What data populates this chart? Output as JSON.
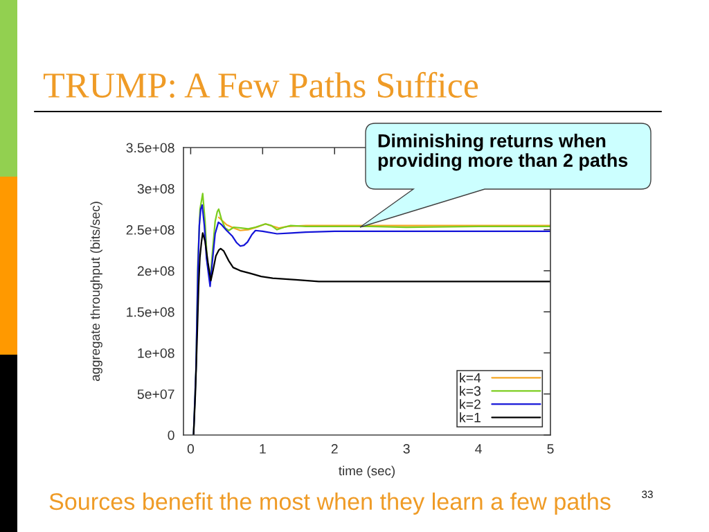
{
  "chart_data": {
    "type": "line",
    "title": "TRUMP: A Few Paths Suffice",
    "xlabel": "time (sec)",
    "ylabel": "aggregate throughput (bits/sec)",
    "xlim": [
      -0.1,
      5
    ],
    "xticks": [
      0,
      1,
      2,
      3,
      4,
      5
    ],
    "ylim": [
      0,
      350000000
    ],
    "yticks": [
      0,
      {
        "value": 50000000,
        "label": "5e+07"
      },
      {
        "value": 100000000,
        "label": "1e+08"
      },
      {
        "value": 150000000,
        "label": "1.5e+08"
      },
      {
        "value": 200000000,
        "label": "2e+08"
      },
      {
        "value": 250000000,
        "label": "2.5e+08"
      },
      {
        "value": 300000000,
        "label": "3e+08"
      },
      {
        "value": 350000000,
        "label": "3.5e+08"
      }
    ],
    "legend": "bottom right",
    "series": [
      {
        "name": "k=4",
        "color": "#f5a623",
        "x": [
          0.39,
          0.5,
          0.6,
          0.69,
          0.8,
          0.95,
          1.04,
          1.15,
          1.23,
          1.35,
          1.6,
          2.0,
          3.0,
          4.0,
          5.0
        ],
        "values": [
          265000000,
          256000000,
          252000000,
          249000000,
          250000000,
          254000000,
          257000000,
          254000000,
          252000000,
          254000000,
          255000000,
          255000000,
          255000000,
          255000000,
          255000000
        ]
      },
      {
        "name": "k=3",
        "color": "#7ccd1f",
        "x": [
          0.04,
          0.074,
          0.1,
          0.13,
          0.167,
          0.2,
          0.23,
          0.27,
          0.3,
          0.34,
          0.37,
          0.39,
          0.43,
          0.48,
          0.53,
          0.6,
          0.7,
          0.8,
          0.9,
          1.04,
          1.12,
          1.2,
          1.3,
          1.39,
          1.6,
          2.0,
          2.5,
          3.0,
          4.0,
          5.0
        ],
        "values": [
          0,
          80000000,
          210000000,
          275000000,
          294000000,
          260000000,
          210000000,
          188000000,
          220000000,
          260000000,
          272000000,
          275000000,
          262000000,
          252000000,
          249000000,
          253000000,
          252000000,
          251000000,
          253000000,
          257000000,
          255000000,
          250000000,
          253000000,
          255000000,
          254000000,
          254000000,
          254000000,
          253000000,
          254000000,
          254000000
        ]
      },
      {
        "name": "k=2",
        "color": "#1414d8",
        "x": [
          0.04,
          0.074,
          0.1,
          0.12,
          0.14,
          0.16,
          0.19,
          0.22,
          0.27,
          0.3,
          0.34,
          0.385,
          0.43,
          0.5,
          0.58,
          0.64,
          0.69,
          0.74,
          0.79,
          0.85,
          0.9,
          1.0,
          1.2,
          1.4,
          1.6,
          2.0,
          3.0,
          4.0,
          5.0
        ],
        "values": [
          0,
          80000000,
          200000000,
          255000000,
          275000000,
          280000000,
          255000000,
          215000000,
          181000000,
          210000000,
          245000000,
          259000000,
          256000000,
          249000000,
          242000000,
          234000000,
          230000000,
          231000000,
          235000000,
          244000000,
          249000000,
          248000000,
          245000000,
          246000000,
          247000000,
          248000000,
          248000000,
          248000000,
          248000000
        ]
      },
      {
        "name": "k=1",
        "color": "#000000",
        "x": [
          0.04,
          0.065,
          0.09,
          0.11,
          0.128,
          0.15,
          0.167,
          0.2,
          0.24,
          0.28,
          0.31,
          0.35,
          0.39,
          0.417,
          0.46,
          0.53,
          0.59,
          0.69,
          0.82,
          0.98,
          1.14,
          1.46,
          1.78,
          2.5,
          3.5,
          5.0
        ],
        "values": [
          0,
          50000000,
          120000000,
          180000000,
          216000000,
          235000000,
          246000000,
          236000000,
          210000000,
          188000000,
          200000000,
          218000000,
          225000000,
          227000000,
          224000000,
          212000000,
          204000000,
          200000000,
          197000000,
          193000000,
          191000000,
          189000000,
          187000000,
          187000000,
          187000000,
          187000000
        ]
      }
    ],
    "annotations": [
      "Diminishing returns when\nproviding more than 2 paths",
      "Sources benefit the most when they learn a few paths",
      "33"
    ]
  }
}
